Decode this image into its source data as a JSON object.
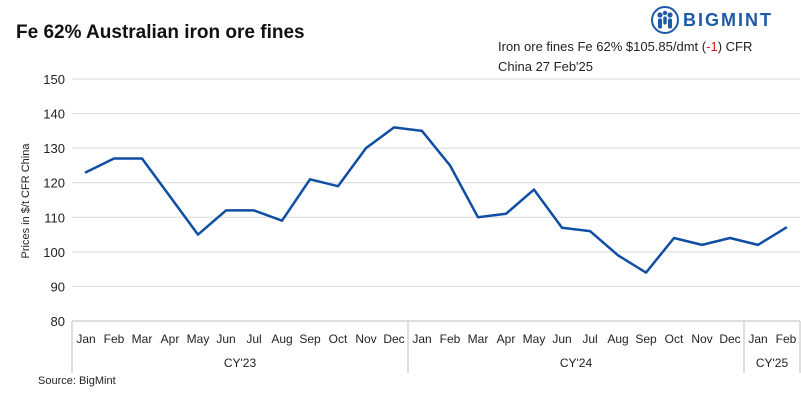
{
  "title": "Fe 62% Australian iron ore fines",
  "annotation": {
    "prefix": "Iron ore fines Fe 62% $105.85/dmt (",
    "change": "-1",
    "suffix": ") CFR China 27 Feb'25"
  },
  "logo": {
    "text": "BIGMINT",
    "icon": "bigmint-people-icon",
    "color": "#1e5aa8"
  },
  "source": "Source: BigMint",
  "chart_data": {
    "type": "line",
    "title": "Fe 62% Australian iron ore fines",
    "ylabel": "Prices in $/t CFR China",
    "xlabel": "",
    "ylim": [
      80,
      150
    ],
    "yticks": [
      80,
      90,
      100,
      110,
      120,
      130,
      140,
      150
    ],
    "grid": true,
    "legend": "none",
    "line_color": "#0f4ea3",
    "categories": [
      "Jan",
      "Feb",
      "Mar",
      "Apr",
      "May",
      "Jun",
      "Jul",
      "Aug",
      "Sep",
      "Oct",
      "Nov",
      "Dec",
      "Jan",
      "Feb",
      "Mar",
      "Apr",
      "May",
      "Jun",
      "Jul",
      "Aug",
      "Sep",
      "Oct",
      "Nov",
      "Dec",
      "Jan",
      "Feb"
    ],
    "groups": [
      {
        "label": "CY'23",
        "count": 12
      },
      {
        "label": "CY'24",
        "count": 12
      },
      {
        "label": "CY'25",
        "count": 2
      }
    ],
    "series": [
      {
        "values": [
          123,
          127,
          127,
          116,
          105,
          112,
          112,
          109,
          121,
          119,
          130,
          136,
          135,
          125,
          110,
          111,
          118,
          107,
          106,
          99,
          94,
          104,
          102,
          104,
          102,
          107
        ]
      }
    ]
  }
}
